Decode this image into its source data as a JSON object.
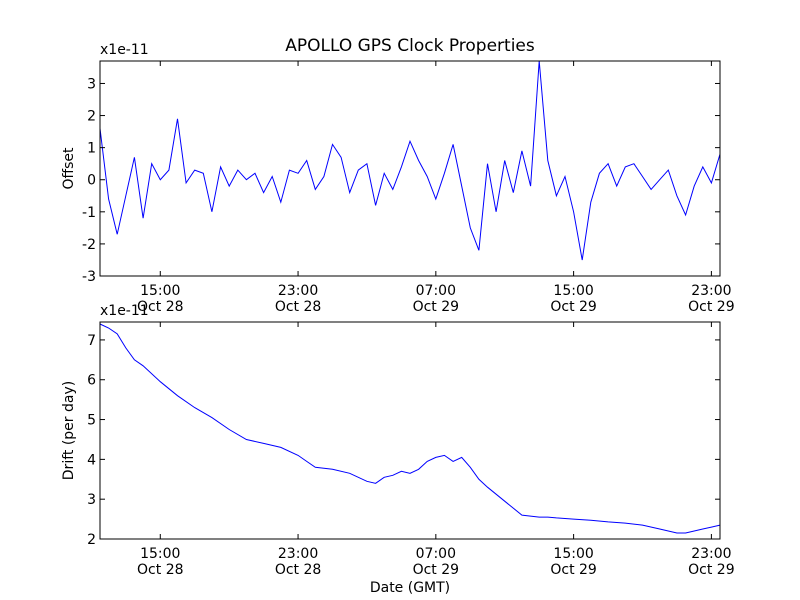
{
  "figure": {
    "title": "APOLLO GPS Clock Properties",
    "line_color": "#0000ff"
  },
  "chart_data": [
    {
      "type": "line",
      "title": "APOLLO GPS Clock Properties",
      "ylabel": "Offset",
      "xlabel": "",
      "scale_label": "x1e-11",
      "x_ticks": [
        {
          "time": "15:00",
          "date": "Oct 28"
        },
        {
          "time": "23:00",
          "date": "Oct 28"
        },
        {
          "time": "07:00",
          "date": "Oct 29"
        },
        {
          "time": "15:00",
          "date": "Oct 29"
        },
        {
          "time": "23:00",
          "date": "Oct 29"
        }
      ],
      "xlim": [
        "Oct 28 11:30",
        "Oct 29 23:30"
      ],
      "ylim": [
        -3,
        3.7
      ],
      "y_ticks": [
        -3,
        -2,
        -1,
        0,
        1,
        2,
        3
      ],
      "grid": false,
      "color": "#0000ff",
      "series": [
        {
          "x": [
            "Oct 28 11:30",
            "Oct 28 12:00",
            "Oct 28 12:30",
            "Oct 28 13:00",
            "Oct 28 13:30",
            "Oct 28 14:00",
            "Oct 28 14:30",
            "Oct 28 15:00",
            "Oct 28 15:30",
            "Oct 28 16:00",
            "Oct 28 16:30",
            "Oct 28 17:00",
            "Oct 28 17:30",
            "Oct 28 18:00",
            "Oct 28 18:30",
            "Oct 28 19:00",
            "Oct 28 19:30",
            "Oct 28 20:00",
            "Oct 28 20:30",
            "Oct 28 21:00",
            "Oct 28 21:30",
            "Oct 28 22:00",
            "Oct 28 22:30",
            "Oct 28 23:00",
            "Oct 28 23:30",
            "Oct 29 00:00",
            "Oct 29 00:30",
            "Oct 29 01:00",
            "Oct 29 01:30",
            "Oct 29 02:00",
            "Oct 29 02:30",
            "Oct 29 03:00",
            "Oct 29 03:30",
            "Oct 29 04:00",
            "Oct 29 04:30",
            "Oct 29 05:00",
            "Oct 29 05:30",
            "Oct 29 06:00",
            "Oct 29 06:30",
            "Oct 29 07:00",
            "Oct 29 07:30",
            "Oct 29 08:00",
            "Oct 29 08:30",
            "Oct 29 09:00",
            "Oct 29 09:30",
            "Oct 29 10:00",
            "Oct 29 10:30",
            "Oct 29 11:00",
            "Oct 29 11:30",
            "Oct 29 12:00",
            "Oct 29 12:30",
            "Oct 29 13:00",
            "Oct 29 13:30",
            "Oct 29 14:00",
            "Oct 29 14:30",
            "Oct 29 15:00",
            "Oct 29 15:30",
            "Oct 29 16:00",
            "Oct 29 16:30",
            "Oct 29 17:00",
            "Oct 29 17:30",
            "Oct 29 18:00",
            "Oct 29 18:30",
            "Oct 29 19:00",
            "Oct 29 19:30",
            "Oct 29 20:00",
            "Oct 29 20:30",
            "Oct 29 21:00",
            "Oct 29 21:30",
            "Oct 29 22:00",
            "Oct 29 22:30",
            "Oct 29 23:00",
            "Oct 29 23:30"
          ],
          "y": [
            1.6,
            -0.6,
            -1.7,
            -0.5,
            0.7,
            -1.2,
            0.5,
            0.0,
            0.3,
            1.9,
            -0.1,
            0.3,
            0.2,
            -1.0,
            0.4,
            -0.2,
            0.3,
            0.0,
            0.2,
            -0.4,
            0.1,
            -0.7,
            0.3,
            0.2,
            0.6,
            -0.3,
            0.1,
            1.1,
            0.7,
            -0.4,
            0.3,
            0.5,
            -0.8,
            0.2,
            -0.3,
            0.4,
            1.2,
            0.6,
            0.1,
            -0.6,
            0.2,
            1.1,
            -0.2,
            -1.5,
            -2.2,
            0.5,
            -1.0,
            0.6,
            -0.4,
            0.9,
            -0.2,
            3.7,
            0.6,
            -0.5,
            0.1,
            -1.0,
            -2.5,
            -0.7,
            0.2,
            0.5,
            -0.2,
            0.4,
            0.5,
            0.1,
            -0.3,
            0.0,
            0.3,
            -0.5,
            -1.1,
            -0.2,
            0.4,
            -0.1,
            0.8
          ]
        }
      ]
    },
    {
      "type": "line",
      "ylabel": "Drift (per day)",
      "xlabel": "Date (GMT)",
      "scale_label": "x1e-11",
      "x_ticks": [
        {
          "time": "15:00",
          "date": "Oct 28"
        },
        {
          "time": "23:00",
          "date": "Oct 28"
        },
        {
          "time": "07:00",
          "date": "Oct 29"
        },
        {
          "time": "15:00",
          "date": "Oct 29"
        },
        {
          "time": "23:00",
          "date": "Oct 29"
        }
      ],
      "xlim": [
        "Oct 28 11:30",
        "Oct 29 23:30"
      ],
      "ylim": [
        2,
        7.45
      ],
      "y_ticks": [
        2,
        3,
        4,
        5,
        6,
        7
      ],
      "grid": false,
      "color": "#0000ff",
      "series": [
        {
          "x": [
            "Oct 28 11:30",
            "Oct 28 12:00",
            "Oct 28 12:30",
            "Oct 28 13:00",
            "Oct 28 13:30",
            "Oct 28 14:00",
            "Oct 28 15:00",
            "Oct 28 16:00",
            "Oct 28 17:00",
            "Oct 28 18:00",
            "Oct 28 19:00",
            "Oct 28 20:00",
            "Oct 28 21:00",
            "Oct 28 22:00",
            "Oct 28 23:00",
            "Oct 28 23:30",
            "Oct 29 00:00",
            "Oct 29 01:00",
            "Oct 29 02:00",
            "Oct 29 03:00",
            "Oct 29 03:30",
            "Oct 29 04:00",
            "Oct 29 04:30",
            "Oct 29 05:00",
            "Oct 29 05:30",
            "Oct 29 06:00",
            "Oct 29 06:30",
            "Oct 29 07:00",
            "Oct 29 07:30",
            "Oct 29 08:00",
            "Oct 29 08:30",
            "Oct 29 09:00",
            "Oct 29 09:30",
            "Oct 29 10:00",
            "Oct 29 11:00",
            "Oct 29 12:00",
            "Oct 29 13:00",
            "Oct 29 13:30",
            "Oct 29 14:00",
            "Oct 29 15:00",
            "Oct 29 16:00",
            "Oct 29 17:00",
            "Oct 29 18:00",
            "Oct 29 19:00",
            "Oct 29 20:00",
            "Oct 29 21:00",
            "Oct 29 21:30",
            "Oct 29 22:00",
            "Oct 29 22:30",
            "Oct 29 23:00",
            "Oct 29 23:30"
          ],
          "y": [
            7.4,
            7.3,
            7.15,
            6.8,
            6.5,
            6.35,
            5.95,
            5.6,
            5.3,
            5.05,
            4.75,
            4.5,
            4.4,
            4.3,
            4.1,
            3.95,
            3.8,
            3.75,
            3.65,
            3.45,
            3.4,
            3.55,
            3.6,
            3.7,
            3.65,
            3.75,
            3.95,
            4.05,
            4.1,
            3.95,
            4.05,
            3.8,
            3.5,
            3.3,
            2.95,
            2.6,
            2.55,
            2.55,
            2.53,
            2.5,
            2.47,
            2.43,
            2.4,
            2.35,
            2.25,
            2.15,
            2.15,
            2.2,
            2.25,
            2.3,
            2.35
          ]
        }
      ]
    }
  ]
}
